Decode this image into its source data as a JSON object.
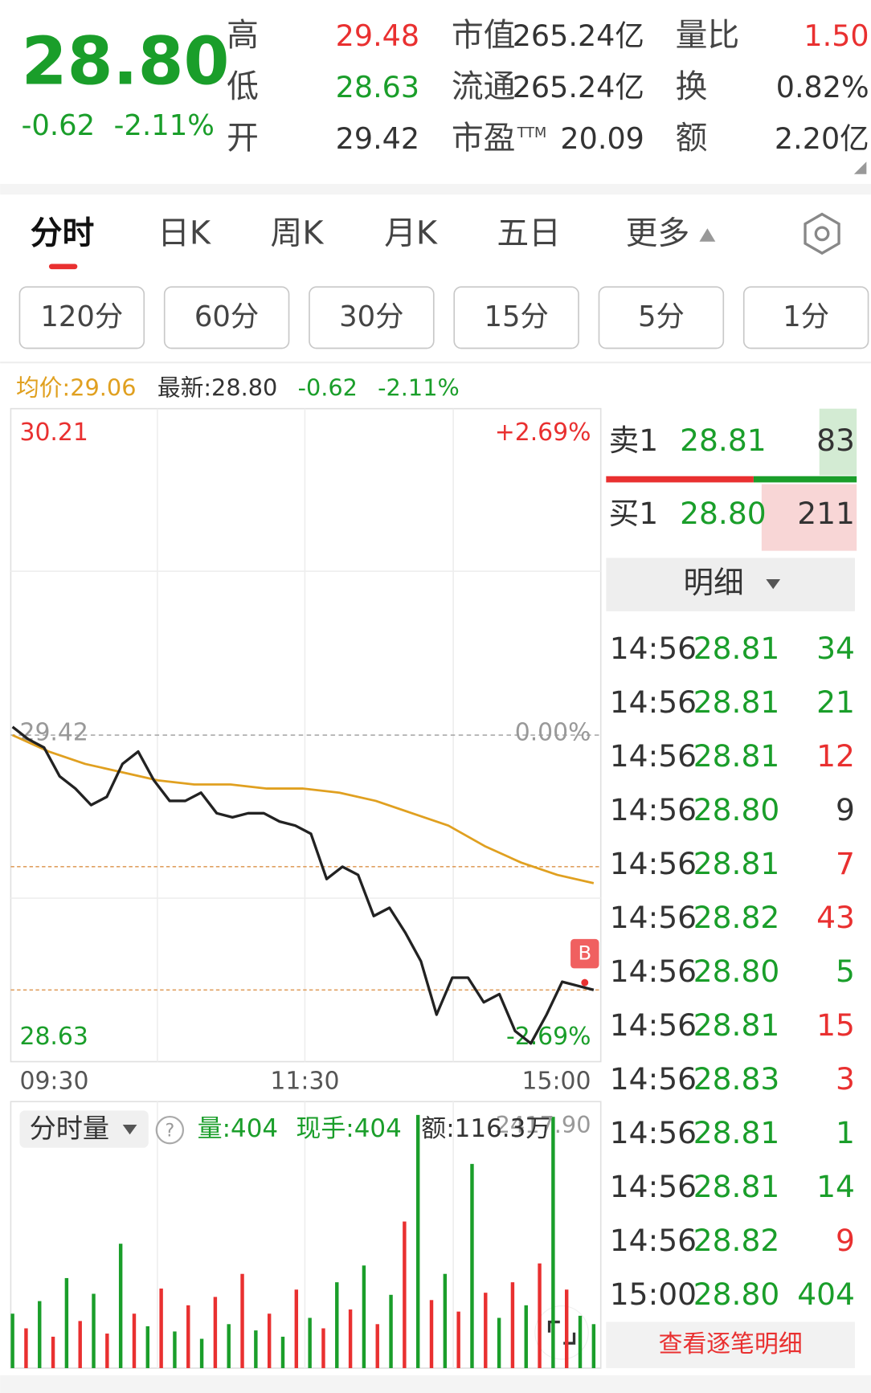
{
  "quote": {
    "price": "28.80",
    "change": "-0.62",
    "change_pct": "-2.11%"
  },
  "stats": [
    {
      "label": "高",
      "value": "29.48"
    },
    {
      "label": "低",
      "value": "28.63"
    },
    {
      "label": "开",
      "value": "29.42"
    },
    {
      "label": "市值",
      "value": "265.24亿"
    },
    {
      "label": "流通",
      "value": "265.24亿"
    },
    {
      "label": "市盈",
      "label_sup": "TTM",
      "value": "20.09"
    },
    {
      "label": "量比",
      "value": "1.50"
    },
    {
      "label": "换",
      "value": "0.82%"
    },
    {
      "label": "额",
      "value": "2.20亿"
    }
  ],
  "tabs": [
    "分时",
    "日K",
    "周K",
    "月K",
    "五日",
    "更多"
  ],
  "intervals": [
    "120分",
    "60分",
    "30分",
    "15分",
    "5分",
    "1分"
  ],
  "info": {
    "avg": "均价:29.06",
    "latest": "最新:28.80",
    "change": "-0.62",
    "change_pct": "-2.11%"
  },
  "intraday": {
    "ylim": [
      28.63,
      30.21
    ],
    "top_pct": "+2.69%",
    "bottom_pct": "-2.69%",
    "prev_close": 29.42,
    "prev_close_pct": "0.00%",
    "ref_lines": [
      29.1,
      28.8
    ],
    "times": [
      "09:30",
      "11:30",
      "15:00"
    ],
    "price": {
      "color": "#222222",
      "values": [
        29.44,
        29.41,
        29.39,
        29.32,
        29.29,
        29.25,
        29.27,
        29.35,
        29.38,
        29.31,
        29.26,
        29.26,
        29.28,
        29.23,
        29.22,
        29.23,
        29.23,
        29.21,
        29.2,
        29.18,
        29.07,
        29.1,
        29.08,
        28.98,
        29.0,
        28.94,
        28.87,
        28.74,
        28.83,
        28.83,
        28.77,
        28.79,
        28.7,
        28.67,
        28.74,
        28.82,
        28.81,
        28.8
      ]
    },
    "avg": {
      "color": "#e0a020",
      "values": [
        29.42,
        29.38,
        29.35,
        29.33,
        29.31,
        29.3,
        29.3,
        29.29,
        29.29,
        29.28,
        29.26,
        29.23,
        29.2,
        29.15,
        29.11,
        29.08,
        29.06
      ]
    },
    "marker": "B"
  },
  "volume": {
    "title": "分时量",
    "help_icon": "?",
    "qty": "量:404",
    "hand": "现手:404",
    "amount": "额:116.3万",
    "ymax": {
      "value": 2417.9,
      "label": "2417.90"
    },
    "values": [
      520,
      380,
      640,
      300,
      860,
      450,
      710,
      330,
      1188,
      520,
      400,
      760,
      350,
      600,
      280,
      680,
      420,
      900,
      360,
      520,
      300,
      750,
      480,
      380,
      820,
      560,
      980,
      420,
      700,
      1400,
      2417.9,
      650,
      900,
      540,
      1950,
      720,
      480,
      820,
      600,
      1000,
      2400,
      750,
      500,
      420
    ],
    "colors": [
      "#1a9e2a",
      "#e93030",
      "#1a9e2a",
      "#e93030",
      "#1a9e2a",
      "#e93030",
      "#1a9e2a",
      "#e93030",
      "#1a9e2a",
      "#e93030",
      "#1a9e2a",
      "#e93030",
      "#1a9e2a",
      "#e93030",
      "#1a9e2a",
      "#e93030",
      "#1a9e2a",
      "#e93030",
      "#1a9e2a",
      "#e93030",
      "#1a9e2a",
      "#e93030",
      "#1a9e2a",
      "#e93030",
      "#1a9e2a",
      "#e93030",
      "#1a9e2a",
      "#e93030",
      "#1a9e2a",
      "#e93030",
      "#1a9e2a",
      "#e93030",
      "#1a9e2a",
      "#e93030",
      "#1a9e2a",
      "#e93030",
      "#1a9e2a",
      "#e93030",
      "#1a9e2a",
      "#e93030",
      "#1a9e2a",
      "#e93030",
      "#1a9e2a",
      "#1a9e2a"
    ]
  },
  "depth": {
    "ask": {
      "label": "卖1",
      "price": "28.81",
      "vol": "83"
    },
    "bid": {
      "label": "买1",
      "price": "28.80",
      "vol": "211"
    }
  },
  "detail_title": "明细",
  "trades": [
    {
      "time": "14:56",
      "price": "28.81",
      "vol": "34",
      "color": "#1a9e2a"
    },
    {
      "time": "14:56",
      "price": "28.81",
      "vol": "21",
      "color": "#1a9e2a"
    },
    {
      "time": "14:56",
      "price": "28.81",
      "vol": "12",
      "color": "#e93030"
    },
    {
      "time": "14:56",
      "price": "28.80",
      "vol": "9",
      "color": "#333333"
    },
    {
      "time": "14:56",
      "price": "28.81",
      "vol": "7",
      "color": "#e93030"
    },
    {
      "time": "14:56",
      "price": "28.82",
      "vol": "43",
      "color": "#e93030"
    },
    {
      "time": "14:56",
      "price": "28.80",
      "vol": "5",
      "color": "#1a9e2a"
    },
    {
      "time": "14:56",
      "price": "28.81",
      "vol": "15",
      "color": "#e93030"
    },
    {
      "time": "14:56",
      "price": "28.83",
      "vol": "3",
      "color": "#e93030"
    },
    {
      "time": "14:56",
      "price": "28.81",
      "vol": "1",
      "color": "#1a9e2a"
    },
    {
      "time": "14:56",
      "price": "28.81",
      "vol": "14",
      "color": "#1a9e2a"
    },
    {
      "time": "14:56",
      "price": "28.82",
      "vol": "9",
      "color": "#e93030"
    },
    {
      "time": "15:00",
      "price": "28.80",
      "vol": "404",
      "color": "#1a9e2a"
    }
  ],
  "more_link": "查看逐笔明细"
}
